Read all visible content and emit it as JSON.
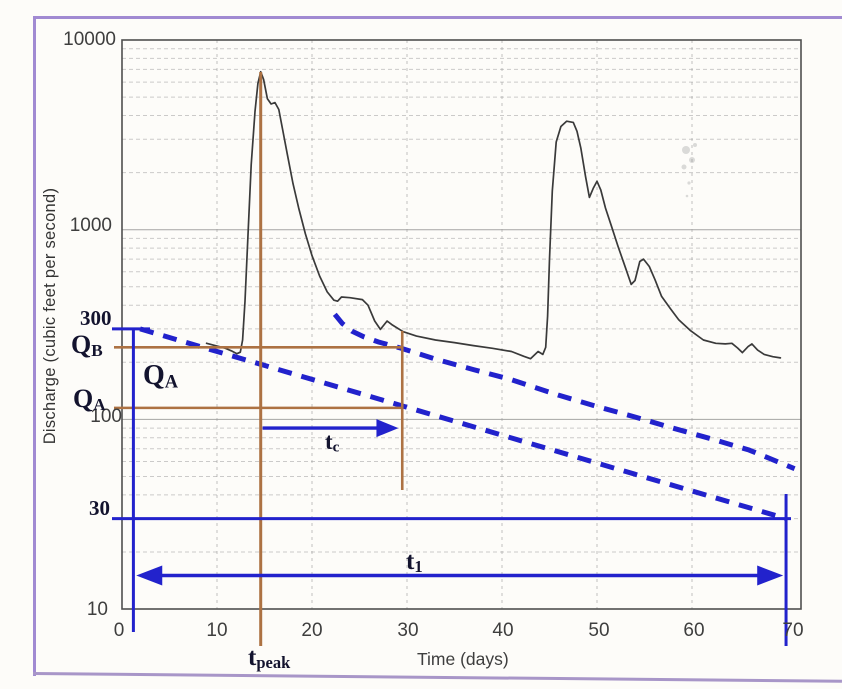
{
  "figure": {
    "y_axis": {
      "title": "Discharge (cubic feet per second)",
      "major_ticks": [
        "10000",
        "1000",
        "100",
        "10"
      ]
    },
    "x_axis": {
      "title": "Time (days)",
      "ticks": [
        "0",
        "10",
        "20",
        "30",
        "40",
        "50",
        "60",
        "70"
      ]
    },
    "annotations": {
      "q300": "300",
      "q30": "30",
      "qb": {
        "base": "Q",
        "sub": "B"
      },
      "qa_left": {
        "base": "Q",
        "sub": "A"
      },
      "qa_inner": {
        "base": "Q",
        "sub": "A"
      },
      "tc": {
        "base": "t",
        "sub": "c"
      },
      "tpeak": {
        "base": "t",
        "sub": "peak"
      },
      "t1": {
        "base": "t",
        "sub": "1"
      }
    },
    "colors": {
      "annotation_blue": "#2222cc",
      "annotation_brown": "#ad7243",
      "curve": "#3a3a3a",
      "grid_minor": "#9a9a9a",
      "grid_major": "#777777",
      "axis_box": "#4f4f4f",
      "frame_purple": "#a18ad2",
      "dark_text": "#13132e"
    }
  },
  "chart_data": {
    "type": "line",
    "title": "",
    "xlabel": "Time (days)",
    "ylabel": "Discharge (cubic feet per second)",
    "x_range": [
      0,
      70
    ],
    "y_scale": "log",
    "y_range": [
      10,
      10000
    ],
    "grid": "on",
    "series": [
      {
        "name": "streamflow-hydrograph",
        "style": "solid",
        "color": "#3a3a3a",
        "points": [
          [
            8.9,
            252
          ],
          [
            9.8,
            245
          ],
          [
            10.8,
            238
          ],
          [
            11.5,
            230
          ],
          [
            12.1,
            222
          ],
          [
            12.45,
            226
          ],
          [
            12.7,
            262
          ],
          [
            12.95,
            420
          ],
          [
            13.2,
            800
          ],
          [
            13.6,
            2200
          ],
          [
            14.0,
            4200
          ],
          [
            14.3,
            5900
          ],
          [
            14.6,
            6800
          ],
          [
            14.9,
            6200
          ],
          [
            15.3,
            4900
          ],
          [
            15.7,
            4600
          ],
          [
            16.1,
            4680
          ],
          [
            16.5,
            4300
          ],
          [
            16.9,
            3400
          ],
          [
            17.4,
            2500
          ],
          [
            18.0,
            1750
          ],
          [
            18.6,
            1300
          ],
          [
            19.3,
            950
          ],
          [
            20.0,
            730
          ],
          [
            20.8,
            570
          ],
          [
            21.6,
            470
          ],
          [
            22.3,
            425
          ],
          [
            22.7,
            420
          ],
          [
            23.1,
            442
          ],
          [
            24.0,
            438
          ],
          [
            25.3,
            428
          ],
          [
            25.9,
            400
          ],
          [
            26.6,
            330
          ],
          [
            27.2,
            298
          ],
          [
            27.9,
            330
          ],
          [
            28.4,
            316
          ],
          [
            29.6,
            290
          ],
          [
            31,
            275
          ],
          [
            33,
            262
          ],
          [
            35,
            254
          ],
          [
            37,
            245
          ],
          [
            39,
            237
          ],
          [
            41,
            228
          ],
          [
            42.3,
            215
          ],
          [
            43.0,
            209
          ],
          [
            43.8,
            228
          ],
          [
            44.3,
            220
          ],
          [
            44.6,
            240
          ],
          [
            44.8,
            350
          ],
          [
            45.0,
            700
          ],
          [
            45.3,
            1600
          ],
          [
            45.7,
            2900
          ],
          [
            46.2,
            3500
          ],
          [
            46.8,
            3730
          ],
          [
            47.5,
            3680
          ],
          [
            47.9,
            3300
          ],
          [
            48.3,
            2700
          ],
          [
            48.8,
            1900
          ],
          [
            49.2,
            1480
          ],
          [
            49.6,
            1650
          ],
          [
            50.0,
            1800
          ],
          [
            50.4,
            1620
          ],
          [
            50.9,
            1300
          ],
          [
            51.5,
            1050
          ],
          [
            52.2,
            820
          ],
          [
            53.0,
            630
          ],
          [
            53.6,
            515
          ],
          [
            54.0,
            540
          ],
          [
            54.5,
            680
          ],
          [
            54.9,
            700
          ],
          [
            55.5,
            640
          ],
          [
            56.1,
            545
          ],
          [
            56.8,
            445
          ],
          [
            57.7,
            385
          ],
          [
            58.6,
            335
          ],
          [
            59.8,
            295
          ],
          [
            61.2,
            262
          ],
          [
            62.5,
            252
          ],
          [
            63.5,
            250
          ],
          [
            64.2,
            252
          ],
          [
            64.8,
            238
          ],
          [
            65.3,
            225
          ],
          [
            65.9,
            242
          ],
          [
            66.3,
            250
          ],
          [
            66.9,
            232
          ],
          [
            67.6,
            220
          ],
          [
            68.5,
            214
          ],
          [
            69.3,
            211
          ]
        ]
      },
      {
        "name": "upper-recession-dashed",
        "style": "dashed",
        "color": "#2222cc",
        "points": [
          [
            22.4,
            358
          ],
          [
            23.2,
            320
          ],
          [
            24.2,
            292
          ],
          [
            25.5,
            272
          ],
          [
            27,
            256
          ],
          [
            29.3,
            238
          ],
          [
            33,
            208
          ],
          [
            37,
            183
          ],
          [
            41,
            162
          ],
          [
            46,
            134
          ],
          [
            50,
            117
          ],
          [
            54,
            103
          ],
          [
            58,
            90
          ],
          [
            62,
            79
          ],
          [
            66,
            69
          ],
          [
            70.8,
            55
          ]
        ]
      },
      {
        "name": "lower-recession-dashed",
        "style": "dashed",
        "color": "#2222cc",
        "points": [
          [
            1.9,
            300
          ],
          [
            69.9,
            30
          ]
        ]
      }
    ],
    "reference_discharges": {
      "initial_baseflow": 300,
      "Q_B": 240,
      "Q_A": 115,
      "end_baseflow": 30
    },
    "reference_times": {
      "start_day": 1.2,
      "t_peak_day": 14.6,
      "t_c_end_day": 29.5,
      "t_1_end_day": 69.9
    },
    "arrows": [
      {
        "name": "t_c",
        "from_day": 14.8,
        "to_day": 29.1,
        "at_discharge": 90,
        "heads": "right"
      },
      {
        "name": "t_1",
        "from_day": 1.5,
        "to_day": 69.6,
        "heads": "both"
      }
    ]
  }
}
